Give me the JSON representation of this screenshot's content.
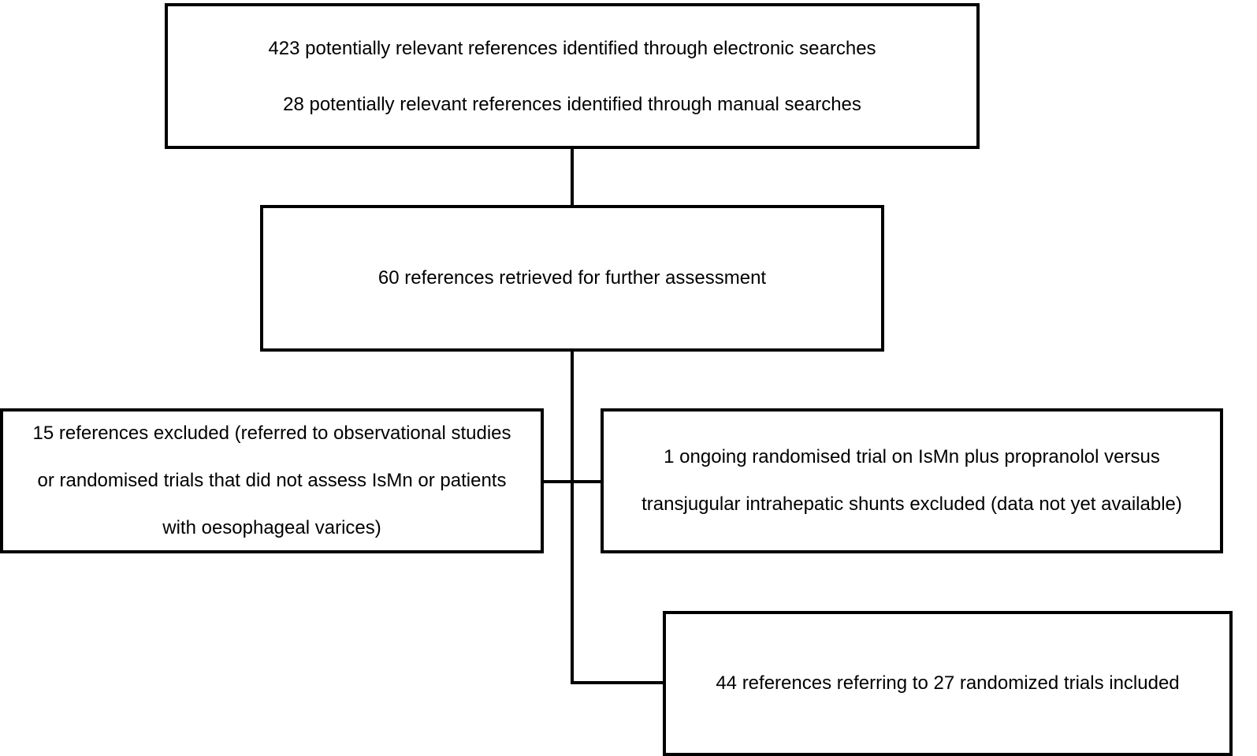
{
  "diagram": {
    "type": "flowchart",
    "boxes": {
      "sources": {
        "lines": [
          "423 potentially relevant references identified through electronic searches",
          "28 potentially relevant references identified through manual searches"
        ]
      },
      "retrieved": {
        "lines": [
          "60 references retrieved for further assessment"
        ]
      },
      "excluded": {
        "lines": [
          "15 references excluded (referred to observational studies",
          "or randomised trials that did not assess IsMn or patients",
          "with oesophageal varices)"
        ]
      },
      "ongoing": {
        "lines": [
          "1 ongoing randomised trial on IsMn plus propranolol versus",
          "transjugular intrahepatic shunts excluded (data not yet available)"
        ]
      },
      "included": {
        "lines": [
          "44 references referring to 27 randomized trials included"
        ]
      }
    },
    "edges": [
      {
        "from": "sources",
        "to": "retrieved"
      },
      {
        "from": "retrieved",
        "to": "excluded"
      },
      {
        "from": "retrieved",
        "to": "ongoing"
      },
      {
        "from": "retrieved",
        "to": "included"
      }
    ],
    "colors": {
      "stroke": "#000000",
      "background": "#ffffff"
    }
  }
}
